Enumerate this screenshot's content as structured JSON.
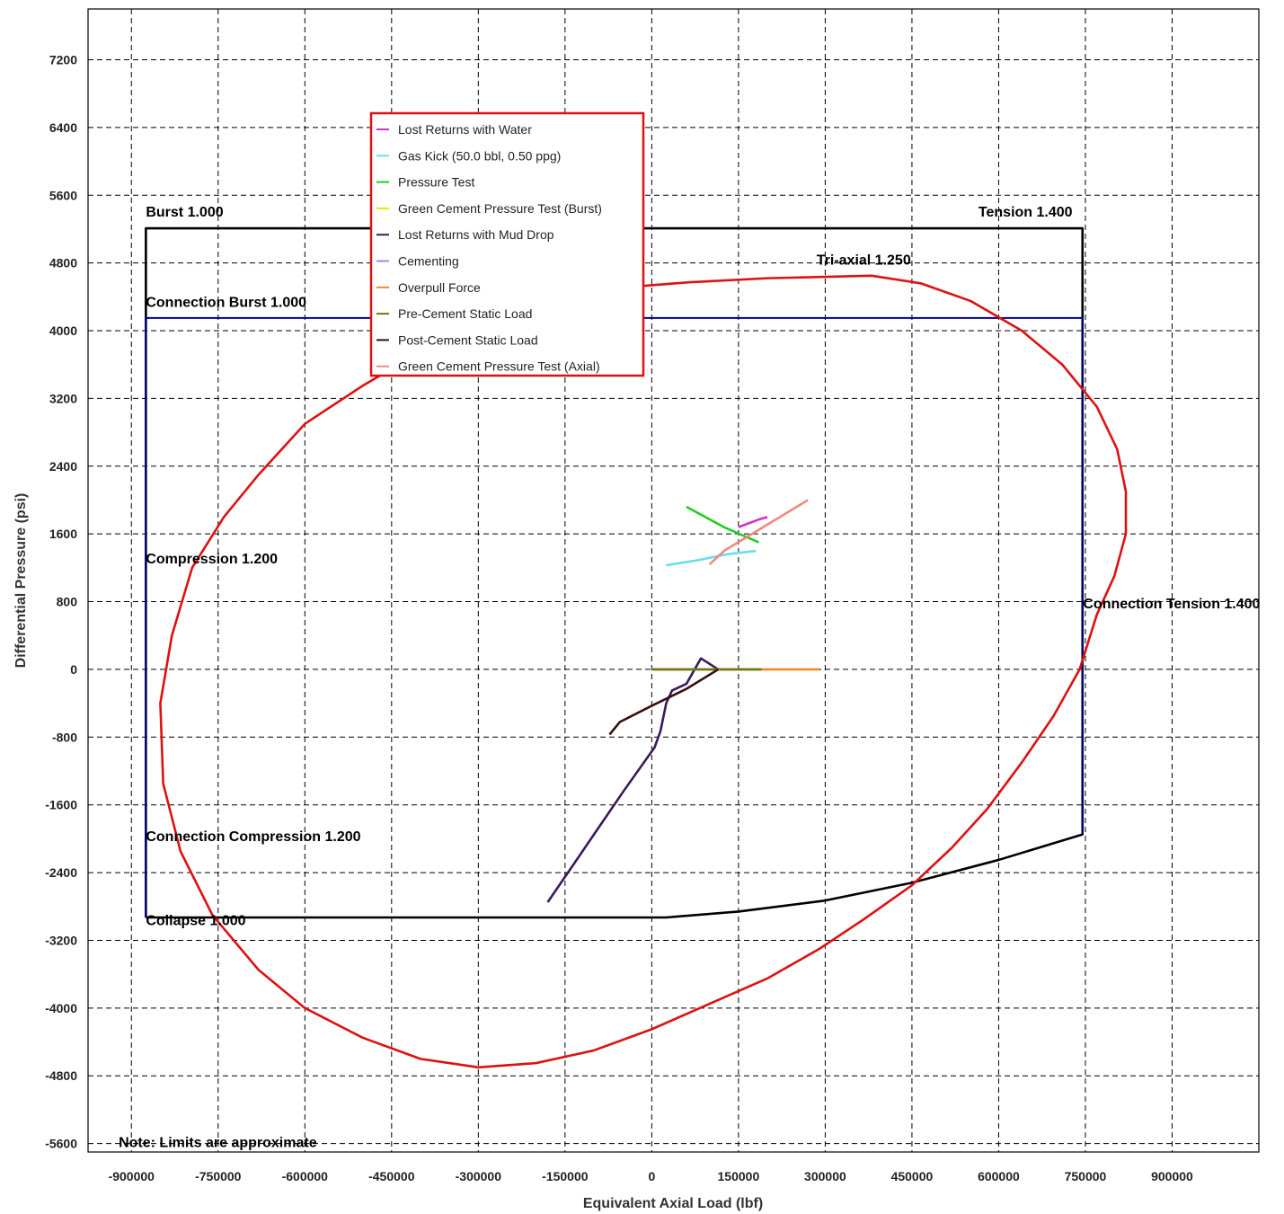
{
  "chart_data": {
    "type": "line",
    "title": "",
    "xlabel": "Equivalent Axial Load (lbf)",
    "ylabel": "Differential Pressure (psi)",
    "xlim": [
      -975000,
      1050000
    ],
    "ylim": [
      -5700,
      7800
    ],
    "x_ticks": [
      -900000,
      -750000,
      -600000,
      -450000,
      -300000,
      -150000,
      0,
      150000,
      300000,
      450000,
      600000,
      750000,
      900000
    ],
    "y_ticks": [
      -5600,
      -4800,
      -4000,
      -3200,
      -2400,
      -1600,
      -800,
      0,
      800,
      1600,
      2400,
      3200,
      4000,
      4800,
      5600,
      6400,
      7200
    ],
    "grid": true,
    "legend_position": "top-center",
    "annotations": [
      {
        "text": "Burst 1.000",
        "x": -875000,
        "y": 5350
      },
      {
        "text": "Tension 1.400",
        "x": 565000,
        "y": 5350
      },
      {
        "text": "Tri-axial 1.250",
        "x": 285000,
        "y": 4780
      },
      {
        "text": "Connection Burst 1.000",
        "x": -875000,
        "y": 4280
      },
      {
        "text": "Compression 1.200",
        "x": -875000,
        "y": 1250
      },
      {
        "text": "Connection Tension 1.400",
        "x": 746000,
        "y": 720
      },
      {
        "text": "Connection Compression 1.200",
        "x": -875000,
        "y": -2030
      },
      {
        "text": "Collapse 1.000",
        "x": -875000,
        "y": -3020
      },
      {
        "text": "Note: Limits are approximate",
        "x": -922000,
        "y": -5640
      }
    ],
    "limit_lines": [
      {
        "name": "Burst / Tension / Collapse envelope",
        "color": "#000000",
        "x": [
          -875000,
          -875000,
          745000,
          745000,
          600000,
          450000,
          300000,
          150000,
          25000,
          -875000
        ],
        "y": [
          -2930,
          5210,
          5210,
          -1950,
          -2250,
          -2520,
          -2730,
          -2860,
          -2930,
          -2930
        ]
      },
      {
        "name": "Connection envelope",
        "color": "#000080",
        "x": [
          -875000,
          -875000,
          745000,
          745000
        ],
        "y": [
          -2930,
          4150,
          4150,
          -1950
        ]
      },
      {
        "name": "Tri-axial ellipse",
        "color": "#dd1111",
        "x": [
          380000,
          465000,
          552000,
          640000,
          710000,
          770000,
          805000,
          820000,
          820000,
          800000,
          770000,
          740000,
          695000,
          640000,
          580000,
          520000,
          450000,
          365000,
          290000,
          200000,
          100000,
          0,
          -100000,
          -200000,
          -300000,
          -350000,
          -400000,
          -500000,
          -600000,
          -680000,
          -760000,
          -815000,
          -845000,
          -850000,
          -830000,
          -795000,
          -740000,
          -680000,
          -600000,
          -500000,
          -400000,
          -300000,
          -190000,
          -70000,
          60000,
          200000,
          380000
        ],
        "y": [
          4650,
          4560,
          4350,
          4000,
          3600,
          3100,
          2600,
          2100,
          1600,
          1100,
          650,
          0,
          -550,
          -1100,
          -1650,
          -2100,
          -2550,
          -2960,
          -3300,
          -3650,
          -3950,
          -4250,
          -4500,
          -4650,
          -4700,
          -4650,
          -4600,
          -4350,
          -4000,
          -3550,
          -2900,
          -2150,
          -1350,
          -400,
          400,
          1200,
          1800,
          2300,
          2900,
          3350,
          3750,
          4050,
          4300,
          4500,
          4570,
          4620,
          4650
        ]
      }
    ],
    "series": [
      {
        "name": "Lost Returns with Water",
        "color": "#cc33cc",
        "x": [
          150000,
          185000,
          200000
        ],
        "y": [
          1680,
          1770,
          1800
        ]
      },
      {
        "name": "Gas Kick (50.0 bbl, 0.50 ppg)",
        "color": "#66e0e8",
        "x": [
          25000,
          80000,
          130000,
          180000
        ],
        "y": [
          1230,
          1290,
          1360,
          1400
        ]
      },
      {
        "name": "Pressure Test",
        "color": "#22cc22",
        "x": [
          60000,
          125000,
          185000
        ],
        "y": [
          1920,
          1680,
          1500
        ]
      },
      {
        "name": "Green Cement Pressure Test (Burst)",
        "color": "#e8e800",
        "x": [],
        "y": []
      },
      {
        "name": "Lost Returns with Mud Drop",
        "color": "#3a1a5a",
        "x": [
          -180000,
          -150000,
          -100000,
          -50000,
          5000,
          15000,
          25000,
          35000,
          60000,
          85000,
          115000
        ],
        "y": [
          -2750,
          -2450,
          -1950,
          -1450,
          -920,
          -730,
          -400,
          -250,
          -170,
          130,
          0
        ]
      },
      {
        "name": "Cementing",
        "color": "#9a8ce0",
        "x": [],
        "y": []
      },
      {
        "name": "Overpull Force",
        "color": "#ee8822",
        "x": [
          0,
          190000,
          290000
        ],
        "y": [
          0,
          0,
          0
        ]
      },
      {
        "name": "Pre-Cement Static Load",
        "color": "#6b7a10",
        "x": [
          0,
          190000
        ],
        "y": [
          0,
          0
        ]
      },
      {
        "name": "Post-Cement Static Load",
        "color": "#3a0e0e",
        "x": [
          -73000,
          -55000,
          0,
          60000,
          115000
        ],
        "y": [
          -770,
          -620,
          -430,
          -230,
          0
        ]
      },
      {
        "name": "Green Cement Pressure Test (Axial)",
        "color": "#ee8a80",
        "x": [
          100000,
          125000,
          190000,
          270000
        ],
        "y": [
          1240,
          1400,
          1670,
          2000
        ]
      }
    ]
  }
}
